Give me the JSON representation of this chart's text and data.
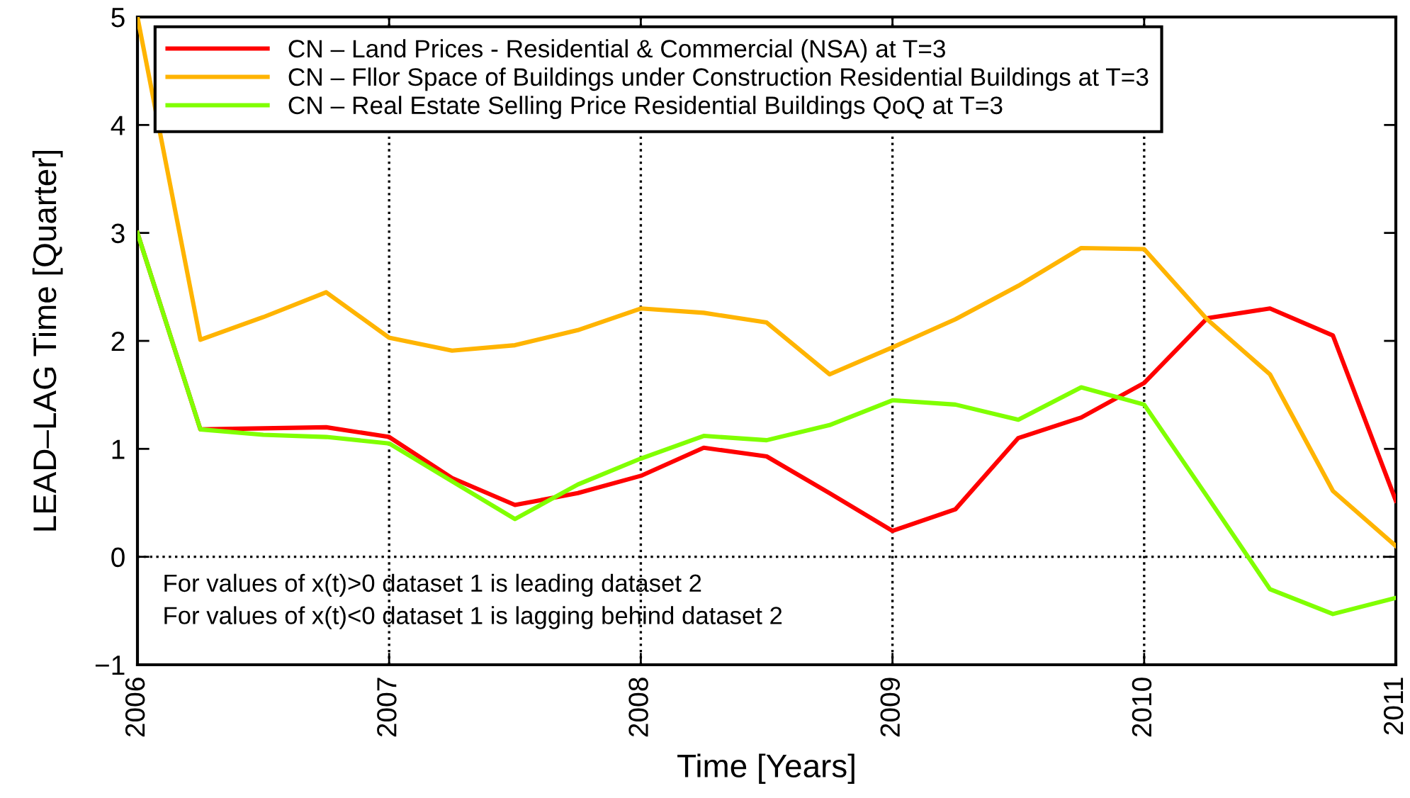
{
  "chart_data": {
    "type": "line",
    "xlabel": "Time [Years]",
    "ylabel": "LEAD–LAG Time [Quarter]",
    "x": [
      2006,
      2006.25,
      2006.5,
      2006.75,
      2007,
      2007.25,
      2007.5,
      2007.75,
      2008,
      2008.25,
      2008.5,
      2008.75,
      2009,
      2009.25,
      2009.5,
      2009.75,
      2010,
      2010.25,
      2010.5,
      2010.75,
      2011
    ],
    "series": [
      {
        "name": "CN – Land Prices - Residential & Commercial (NSA) at T=3",
        "color": "#ff0000",
        "values": [
          3.0,
          1.18,
          1.19,
          1.2,
          1.11,
          0.73,
          0.48,
          0.59,
          0.75,
          1.01,
          0.93,
          0.59,
          0.24,
          0.44,
          1.1,
          1.29,
          1.61,
          2.21,
          2.3,
          2.05,
          0.52
        ]
      },
      {
        "name": "CN – Fllor Space of Buildings under Construction Residential Buildings at T=3",
        "color": "#ffb400",
        "values": [
          5.0,
          2.01,
          2.22,
          2.45,
          2.03,
          1.91,
          1.96,
          2.1,
          2.3,
          2.26,
          2.17,
          1.69,
          1.94,
          2.2,
          2.51,
          2.86,
          2.85,
          2.2,
          1.69,
          0.61,
          0.1
        ]
      },
      {
        "name": "CN – Real Estate Selling Price Residential Buildings QoQ at T=3",
        "color": "#80ff00",
        "values": [
          3.0,
          1.18,
          1.13,
          1.11,
          1.05,
          0.7,
          0.35,
          0.67,
          0.91,
          1.12,
          1.08,
          1.22,
          1.45,
          1.41,
          1.27,
          1.57,
          1.41,
          0.56,
          -0.3,
          -0.53,
          -0.38
        ]
      }
    ],
    "xlim": [
      2006,
      2011
    ],
    "xticks": [
      2006,
      2007,
      2008,
      2009,
      2010,
      2011
    ],
    "ylim": [
      -1,
      5
    ],
    "yticks": [
      {
        "value": -1,
        "label": "−1"
      },
      0,
      1,
      2,
      3,
      4,
      5
    ],
    "grid": "x",
    "legend": "top left",
    "line_style": "solid",
    "marker": "none",
    "ref_lines": [
      {
        "axis": "y",
        "value": 0,
        "color": "#000000",
        "line_style": "dotted"
      }
    ],
    "annotations": [
      "For values of x(t)>0 dataset 1 is leading dataset 2",
      "For values of x(t)<0 dataset 1 is lagging behind dataset 2"
    ]
  }
}
